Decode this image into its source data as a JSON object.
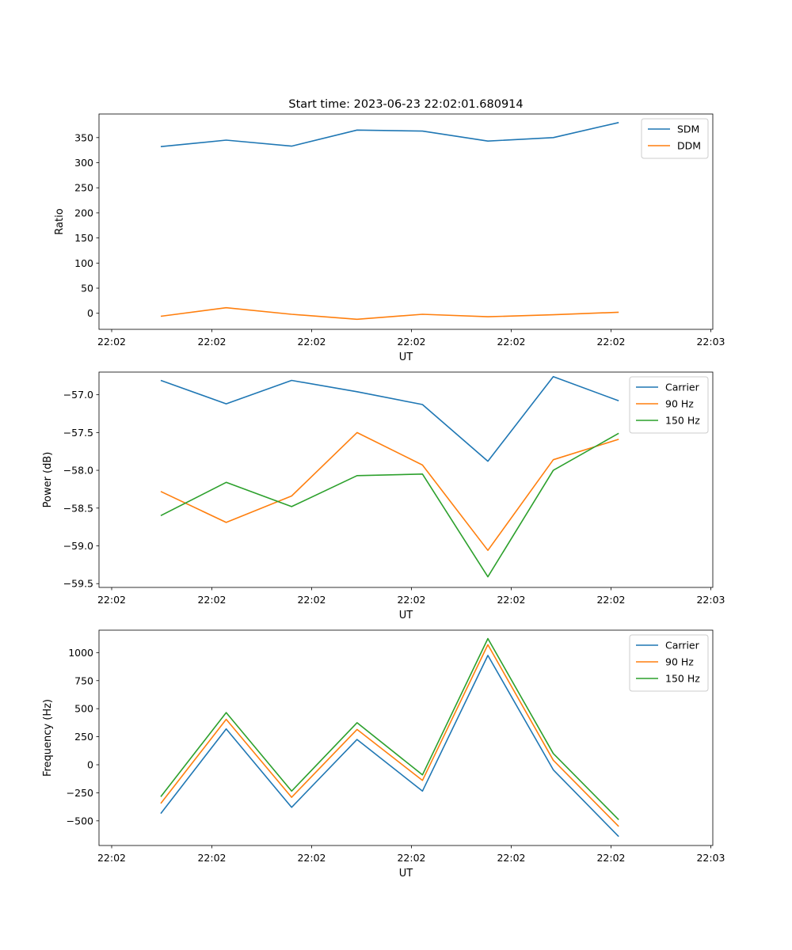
{
  "figure": {
    "title": "Start time: 2023-06-23 22:02:01.680914"
  },
  "chart_data": [
    {
      "type": "line",
      "title": "Start time: 2023-06-23 22:02:01.680914",
      "xlabel": "UT",
      "ylabel": "Ratio",
      "x": [
        "22:02",
        "22:02",
        "22:02",
        "22:02",
        "22:02",
        "22:02",
        "22:02",
        "22:02"
      ],
      "x_ticks": [
        "22:02",
        "22:02",
        "22:02",
        "22:02",
        "22:02",
        "22:02",
        "22:03"
      ],
      "yticks": [
        0,
        50,
        100,
        150,
        200,
        250,
        300,
        350
      ],
      "ylim": [
        -32,
        397
      ],
      "grid": false,
      "legend": "top-right",
      "series": [
        {
          "name": "SDM",
          "color": "#1f77b4",
          "values": [
            332,
            345,
            333,
            365,
            363,
            343,
            350,
            380
          ]
        },
        {
          "name": "DDM",
          "color": "#ff7f0e",
          "values": [
            -6,
            11,
            -2,
            -12,
            -2,
            -7,
            -3,
            2
          ]
        }
      ]
    },
    {
      "type": "line",
      "title": "",
      "xlabel": "UT",
      "ylabel": "Power (dB)",
      "x": [
        "22:02",
        "22:02",
        "22:02",
        "22:02",
        "22:02",
        "22:02",
        "22:02",
        "22:02"
      ],
      "x_ticks": [
        "22:02",
        "22:02",
        "22:02",
        "22:02",
        "22:02",
        "22:02",
        "22:03"
      ],
      "yticks": [
        -59.5,
        -59.0,
        -58.5,
        -58.0,
        -57.5,
        -57.0
      ],
      "ylim": [
        -59.55,
        -56.7
      ],
      "grid": false,
      "legend": "top-right",
      "series": [
        {
          "name": "Carrier",
          "color": "#1f77b4",
          "values": [
            -56.81,
            -57.12,
            -56.81,
            -56.96,
            -57.13,
            -57.88,
            -56.76,
            -57.08
          ]
        },
        {
          "name": "90 Hz",
          "color": "#ff7f0e",
          "values": [
            -58.28,
            -58.69,
            -58.34,
            -57.5,
            -57.93,
            -59.06,
            -57.86,
            -57.59
          ]
        },
        {
          "name": "150 Hz",
          "color": "#2ca02c",
          "values": [
            -58.6,
            -58.16,
            -58.48,
            -58.07,
            -58.05,
            -59.41,
            -58.0,
            -57.51
          ]
        }
      ]
    },
    {
      "type": "line",
      "title": "",
      "xlabel": "UT",
      "ylabel": "Frequency (Hz)",
      "x": [
        "22:02",
        "22:02",
        "22:02",
        "22:02",
        "22:02",
        "22:02",
        "22:02",
        "22:02"
      ],
      "x_ticks": [
        "22:02",
        "22:02",
        "22:02",
        "22:02",
        "22:02",
        "22:02",
        "22:03"
      ],
      "yticks": [
        -500,
        -250,
        0,
        250,
        500,
        750,
        1000
      ],
      "ylim": [
        -720,
        1200
      ],
      "grid": false,
      "legend": "top-right",
      "series": [
        {
          "name": "Carrier",
          "color": "#1f77b4",
          "values": [
            -435,
            320,
            -380,
            225,
            -235,
            975,
            -45,
            -640
          ]
        },
        {
          "name": "90 Hz",
          "color": "#ff7f0e",
          "values": [
            -345,
            405,
            -290,
            315,
            -140,
            1070,
            40,
            -550
          ]
        },
        {
          "name": "150 Hz",
          "color": "#2ca02c",
          "values": [
            -285,
            465,
            -235,
            375,
            -90,
            1125,
            100,
            -490
          ]
        }
      ]
    }
  ]
}
